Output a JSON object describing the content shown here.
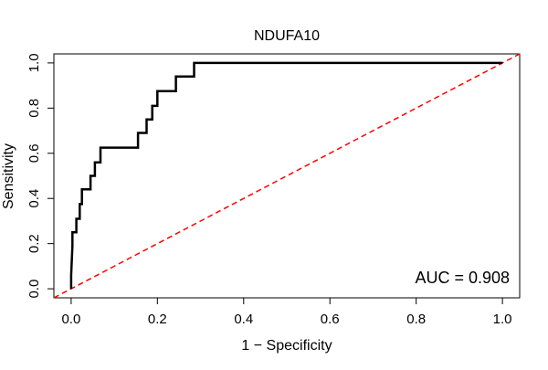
{
  "chart_data": {
    "type": "line",
    "title": "NDUFA10",
    "xlabel": "1 − Specificity",
    "ylabel": "Sensitivity",
    "xlim": [
      -0.04,
      1.04
    ],
    "ylim": [
      -0.04,
      1.04
    ],
    "xticks": [
      "0.0",
      "0.2",
      "0.4",
      "0.6",
      "0.8",
      "1.0"
    ],
    "yticks": [
      "0.0",
      "0.2",
      "0.4",
      "0.6",
      "0.8",
      "1.0"
    ],
    "annotation": "AUC = 0.908",
    "colors": {
      "curve": "#000000",
      "reference": "#ff0000"
    },
    "series": [
      {
        "values": [
          [
            0,
            0
          ],
          [
            0,
            0.06
          ],
          [
            0.003,
            0.19
          ],
          [
            0.003,
            0.25
          ],
          [
            0.012,
            0.25
          ],
          [
            0.012,
            0.31
          ],
          [
            0.02,
            0.31
          ],
          [
            0.02,
            0.375
          ],
          [
            0.025,
            0.375
          ],
          [
            0.025,
            0.44
          ],
          [
            0.045,
            0.44
          ],
          [
            0.045,
            0.5
          ],
          [
            0.055,
            0.5
          ],
          [
            0.055,
            0.56
          ],
          [
            0.068,
            0.56
          ],
          [
            0.068,
            0.625
          ],
          [
            0.155,
            0.625
          ],
          [
            0.155,
            0.69
          ],
          [
            0.175,
            0.69
          ],
          [
            0.175,
            0.75
          ],
          [
            0.188,
            0.75
          ],
          [
            0.188,
            0.81
          ],
          [
            0.2,
            0.81
          ],
          [
            0.2,
            0.875
          ],
          [
            0.243,
            0.875
          ],
          [
            0.243,
            0.94
          ],
          [
            0.285,
            0.94
          ],
          [
            0.285,
            1.0
          ],
          [
            1.0,
            1.0
          ]
        ]
      },
      {
        "values": [
          [
            -0.04,
            -0.04
          ],
          [
            1.04,
            1.04
          ]
        ]
      }
    ]
  }
}
